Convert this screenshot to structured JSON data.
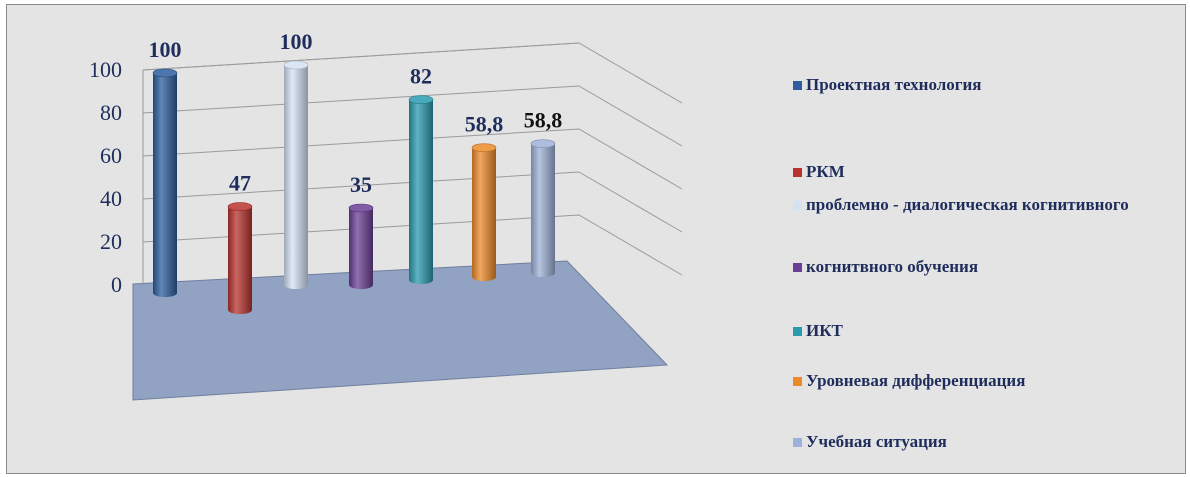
{
  "chart_data": {
    "type": "bar",
    "style": "3d-cylinder",
    "title": "",
    "xlabel": "",
    "ylabel": "",
    "ylim": [
      0,
      100
    ],
    "yticks": [
      0,
      20,
      40,
      60,
      80,
      100
    ],
    "grid": true,
    "legend_position": "right",
    "series": [
      {
        "name": "Проектная технология",
        "value": 100,
        "label": "100",
        "color": "#2e5e9e"
      },
      {
        "name": "РКМ",
        "value": 47,
        "label": "47",
        "color": "#b8332e"
      },
      {
        "name": "проблемно - диалогическая когнитивного",
        "value": 100,
        "label": "100",
        "color": "#d4e2f4"
      },
      {
        "name": "когнитвного обучения",
        "value": 35,
        "label": "35",
        "color": "#6b3f96"
      },
      {
        "name": "ИКТ",
        "value": 82,
        "label": "82",
        "color": "#2a9aae"
      },
      {
        "name": "Уровневая дифференциация",
        "value": 58.8,
        "label": "58,8",
        "color": "#ec8a2a"
      },
      {
        "name": "Учебная ситуация",
        "value": 58.8,
        "label": "58,8",
        "color": "#9fb1d8"
      }
    ]
  }
}
